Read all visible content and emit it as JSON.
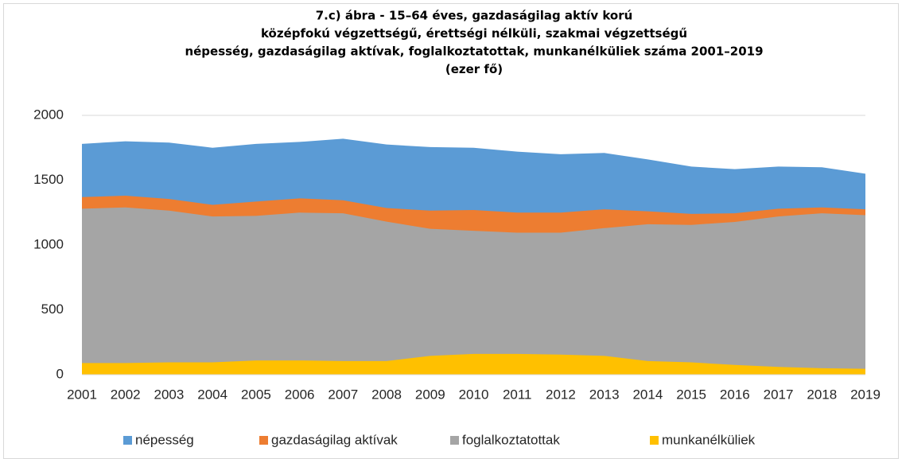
{
  "chart_data": {
    "type": "area",
    "title": [
      "7.c) ábra - 15–64 éves, gazdaságilag aktív korú",
      "középfokú végzettségű, érettségi nélküli, szakmai végzettségű",
      "népesség, gazdaságilag aktívak, foglalkoztatottak, munkanélküliek száma 2001–2019",
      "(ezer fő)"
    ],
    "categories": [
      "2001",
      "2002",
      "2003",
      "2004",
      "2005",
      "2006",
      "2007",
      "2008",
      "2009",
      "2010",
      "2011",
      "2012",
      "2013",
      "2014",
      "2015",
      "2016",
      "2017",
      "2018",
      "2019"
    ],
    "series": [
      {
        "name": "népesség",
        "color": "#5b9bd5",
        "values": [
          1780,
          1800,
          1790,
          1750,
          1780,
          1795,
          1820,
          1775,
          1755,
          1750,
          1720,
          1700,
          1710,
          1660,
          1605,
          1585,
          1605,
          1600,
          1550
        ]
      },
      {
        "name": "gazdaságilag aktívak",
        "color": "#ed7d31",
        "values": [
          1370,
          1380,
          1355,
          1310,
          1335,
          1360,
          1345,
          1285,
          1265,
          1270,
          1250,
          1250,
          1275,
          1260,
          1240,
          1245,
          1280,
          1290,
          1275
        ]
      },
      {
        "name": "foglalkoztatottak",
        "color": "#a5a5a5",
        "values": [
          1280,
          1290,
          1265,
          1220,
          1225,
          1250,
          1245,
          1180,
          1125,
          1110,
          1095,
          1095,
          1130,
          1160,
          1155,
          1178,
          1220,
          1245,
          1230
        ]
      },
      {
        "name": "munkanélküliek",
        "color": "#ffc000",
        "values": [
          90,
          90,
          95,
          95,
          110,
          110,
          105,
          105,
          145,
          160,
          160,
          155,
          145,
          105,
          95,
          75,
          60,
          50,
          45
        ]
      }
    ],
    "ylim": [
      0,
      2000
    ],
    "yticks": [
      0,
      500,
      1000,
      1500,
      2000
    ],
    "grid": true,
    "legend": "bottom"
  }
}
